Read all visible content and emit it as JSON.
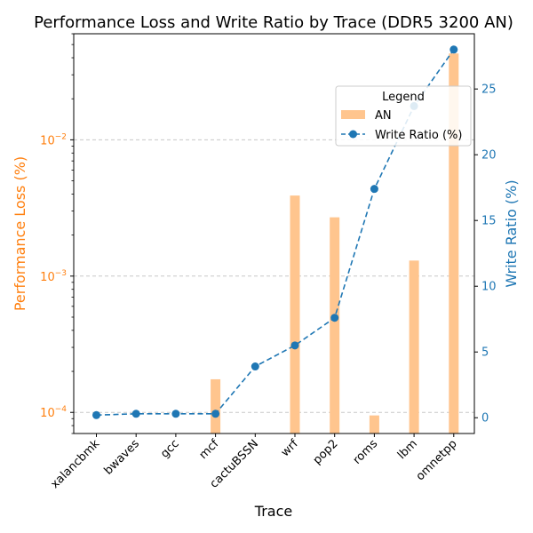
{
  "chart_data": {
    "type": "bar",
    "title": "Performance Loss and Write Ratio by Trace (DDR5 3200 AN)",
    "xlabel": "Trace",
    "ylabel_left": "Performance Loss (%)",
    "ylabel_right": "Write Ratio (%)",
    "categories": [
      "xalancbmk",
      "bwaves",
      "gcc",
      "mcf",
      "cactuBSSN",
      "wrf",
      "pop2",
      "roms",
      "lbm",
      "omnetpp"
    ],
    "left_axis": {
      "scale": "log",
      "ylim": [
        7e-05,
        0.06
      ],
      "ticks": [
        0.0001,
        0.001,
        0.01
      ],
      "tick_labels": [
        [
          "10",
          "−4"
        ],
        [
          "10",
          "−3"
        ],
        [
          "10",
          "−2"
        ]
      ]
    },
    "right_axis": {
      "scale": "linear",
      "ylim": [
        -1.2,
        29.2
      ],
      "ticks": [
        0,
        5,
        10,
        15,
        20,
        25
      ],
      "tick_labels": [
        "0",
        "5",
        "10",
        "15",
        "20",
        "25"
      ]
    },
    "series": [
      {
        "name": "AN",
        "kind": "bar",
        "axis": "left",
        "color": "#ffc58e",
        "values": [
          null,
          null,
          null,
          0.000175,
          null,
          0.0039,
          0.0027,
          9.5e-05,
          0.0013,
          0.043
        ]
      },
      {
        "name": "Write Ratio (%)",
        "kind": "line",
        "axis": "right",
        "style": "dashed",
        "marker": "circle",
        "color": "#1f77b4",
        "values": [
          0.2,
          0.3,
          0.3,
          0.3,
          3.9,
          5.5,
          7.6,
          17.4,
          23.7,
          28.0
        ]
      }
    ],
    "grid": "y-major, dashed",
    "legend": {
      "title": "Legend",
      "position": "upper-right"
    },
    "colors": {
      "left_axis": "#ff7f0e",
      "right_axis": "#1f77b4",
      "grid": "#c8c8c8"
    }
  }
}
